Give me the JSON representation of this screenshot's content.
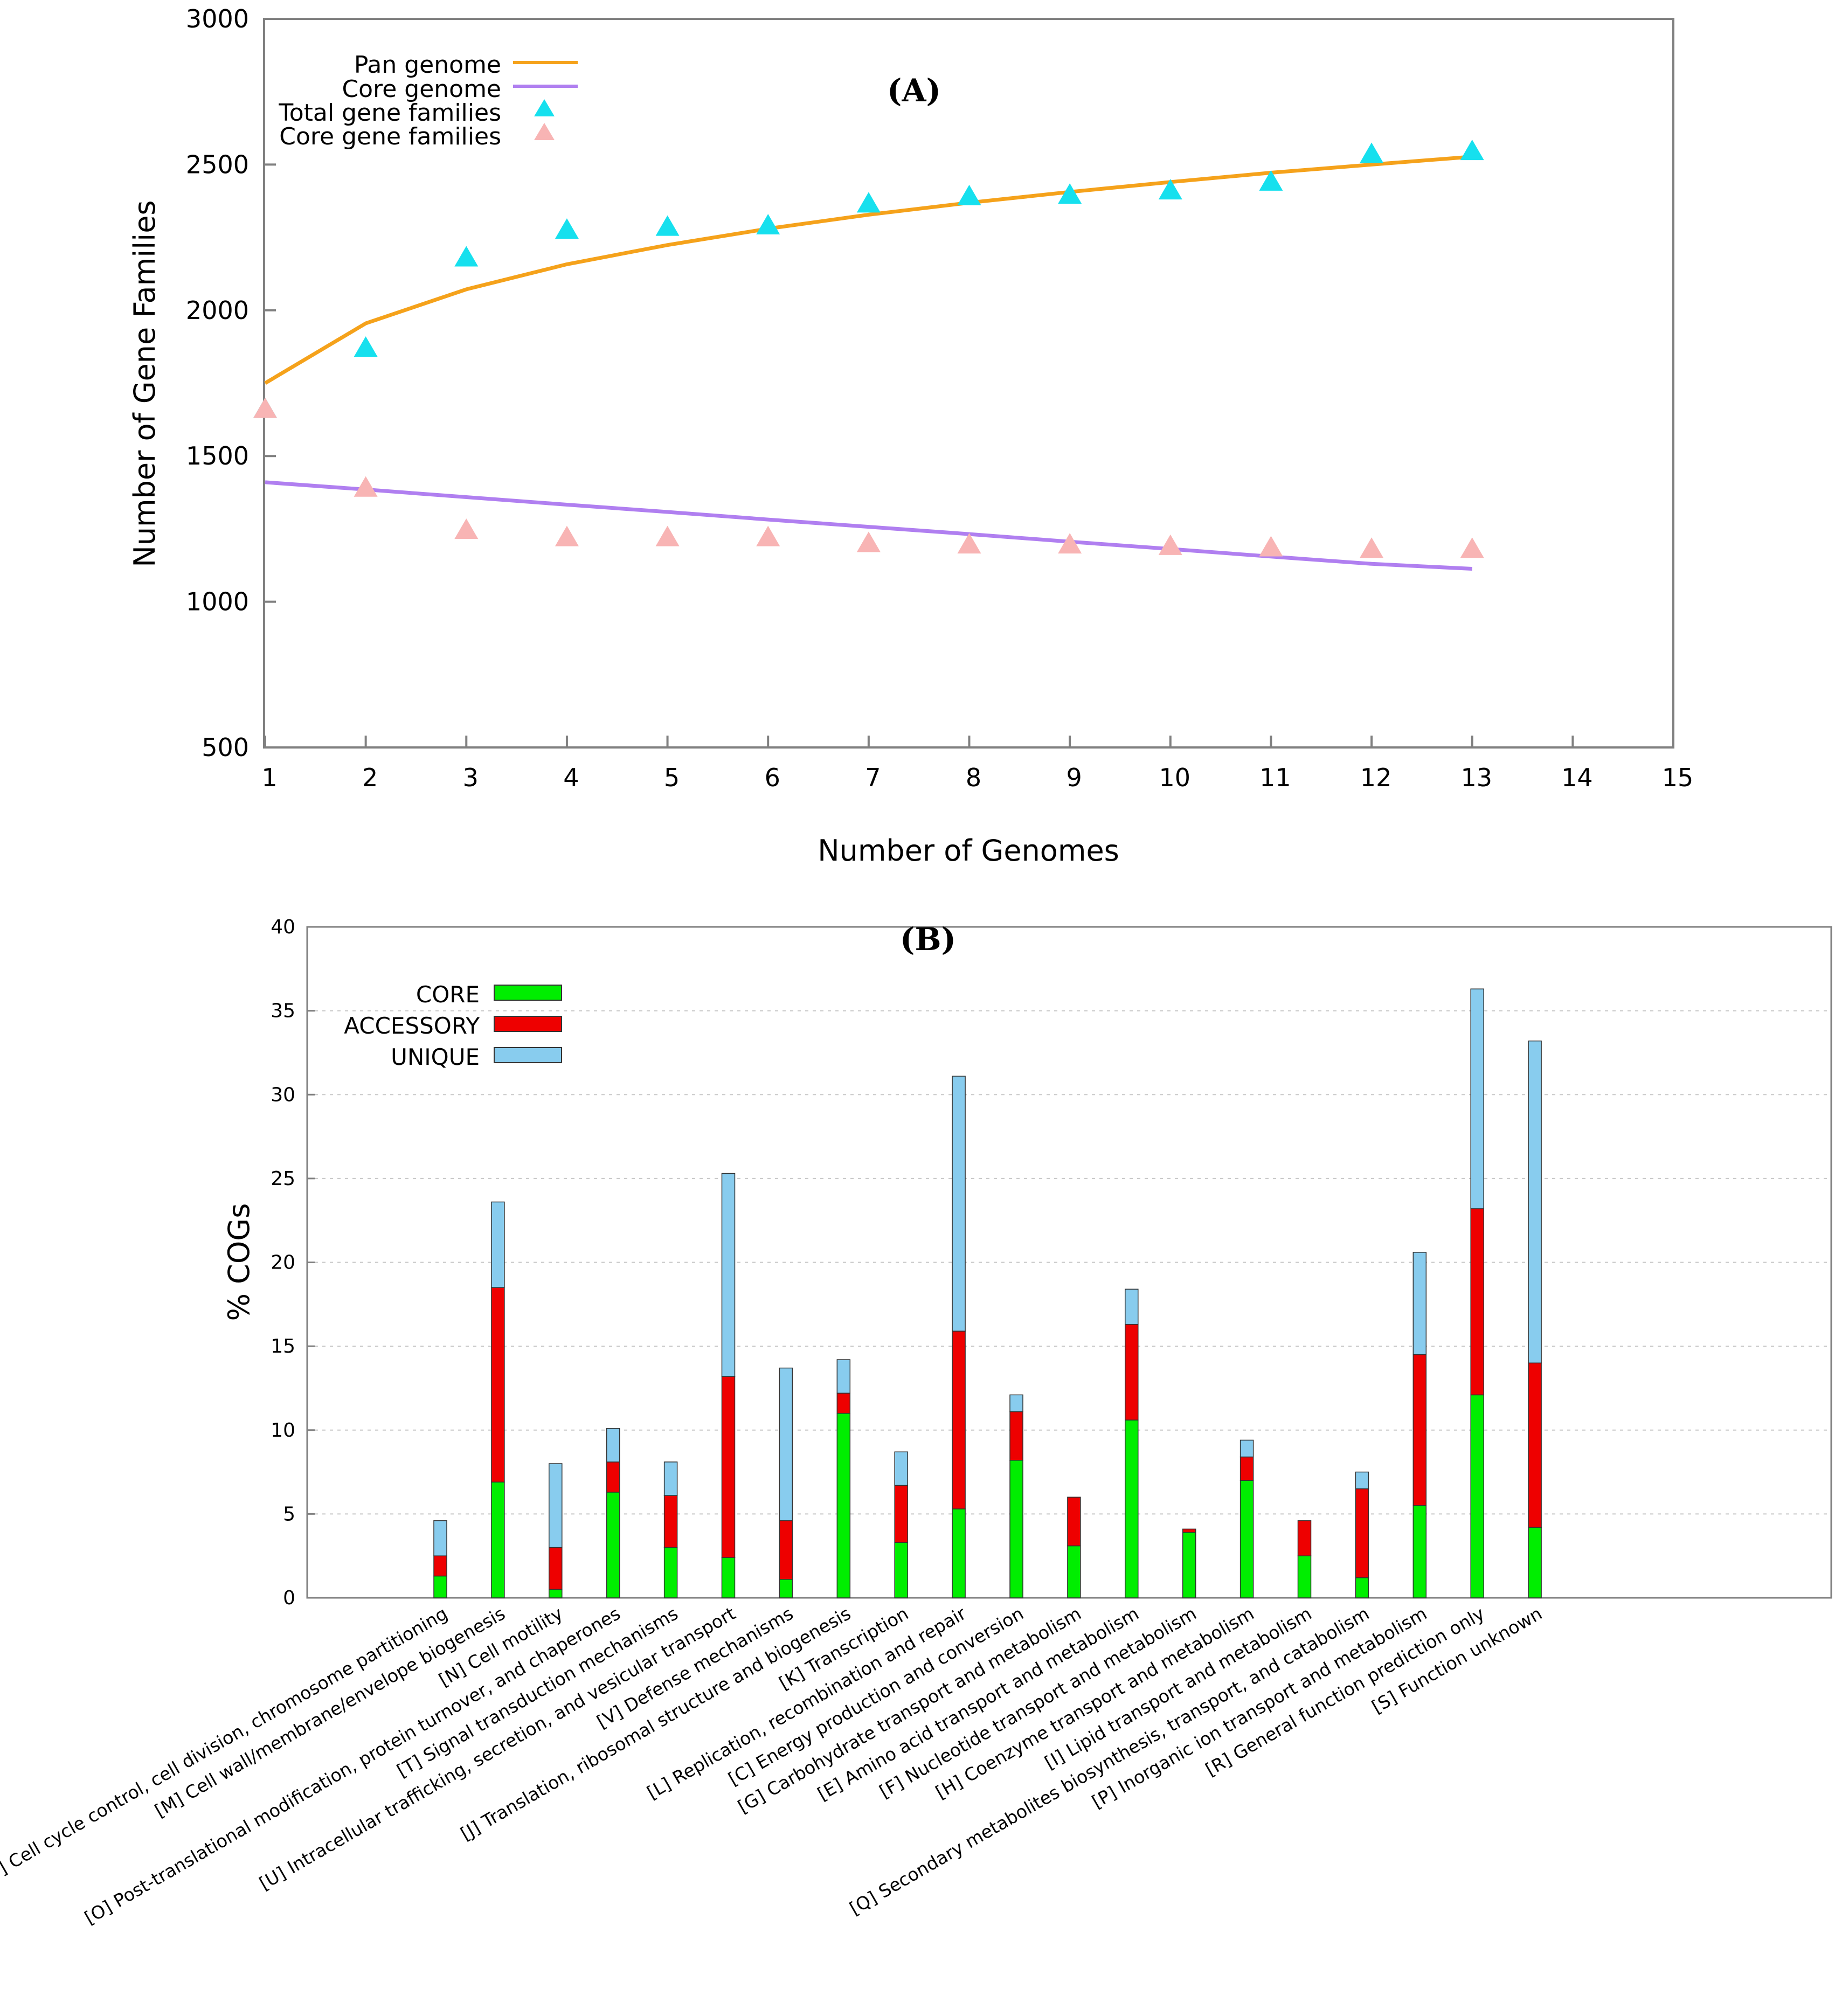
{
  "chart_data": [
    {
      "type": "line",
      "panel_label": "(A)",
      "xlabel": "Number of Genomes",
      "ylabel": "Number of Gene Families",
      "xlim": [
        1,
        15
      ],
      "ylim": [
        500,
        3000
      ],
      "x_ticks": [
        "1",
        "2",
        "3",
        "4",
        "5",
        "6",
        "7",
        "8",
        "9",
        "10",
        "11",
        "12",
        "13",
        "14",
        "15"
      ],
      "y_ticks": [
        "500",
        "1000",
        "1500",
        "2000",
        "2500",
        "3000"
      ],
      "legend": [
        "Pan genome",
        "Core genome",
        "Total gene families",
        "Core gene families"
      ],
      "x": [
        1,
        2,
        3,
        4,
        5,
        6,
        7,
        8,
        9,
        10,
        11,
        12,
        13
      ],
      "series": [
        {
          "name": "Pan genome",
          "style": "line",
          "color": "#f5a21b",
          "values": [
            1750,
            1955,
            2072,
            2158,
            2224,
            2280,
            2328,
            2369,
            2406,
            2440,
            2472,
            2500,
            2527
          ],
          "values_note": "fitted curve"
        },
        {
          "name": "Core genome",
          "style": "line",
          "color": "#b07ff0",
          "values": [
            1410,
            1385,
            1359,
            1333,
            1308,
            1282,
            1257,
            1232,
            1206,
            1181,
            1155,
            1130,
            1113
          ],
          "values_note": "fitted line"
        },
        {
          "name": "Total gene families",
          "style": "triangle",
          "color": "#16e0ee",
          "values": [
            1660,
            1870,
            2180,
            2275,
            2285,
            2290,
            2365,
            2390,
            2395,
            2410,
            2440,
            2535,
            2545
          ]
        },
        {
          "name": "Core gene families",
          "style": "triangle",
          "color": "#f8b4b4",
          "values": [
            1660,
            1390,
            1245,
            1220,
            1220,
            1220,
            1200,
            1195,
            1195,
            1190,
            1185,
            1180,
            1180
          ]
        }
      ]
    },
    {
      "type": "bar",
      "stacked": true,
      "panel_label": "(B)",
      "ylabel": "% COGs",
      "ylim": [
        0,
        40
      ],
      "y_ticks": [
        "0",
        "5",
        "10",
        "15",
        "20",
        "25",
        "30",
        "35",
        "40"
      ],
      "legend": [
        "CORE",
        "ACCESSORY",
        "UNIQUE"
      ],
      "categories": [
        "[D] Cell cycle control, cell division, chromosome partitioning",
        "[M] Cell wall/membrane/envelope biogenesis",
        "[N] Cell motility",
        "[O] Post-translational modification, protein turnover, and chaperones",
        "[T] Signal transduction mechanisms",
        "[U] Intracellular trafficking, secretion, and vesicular transport",
        "[V] Defense mechanisms",
        "[J] Translation, ribosomal structure and biogenesis",
        "[K] Transcription",
        "[L] Replication, recombination and repair",
        "[C] Energy production and conversion",
        "[G] Carbohydrate transport and metabolism",
        "[E] Amino acid transport and metabolism",
        "[F] Nucleotide transport and metabolism",
        "[H] Coenzyme transport and metabolism",
        "[I] Lipid transport and metabolism",
        "[Q] Secondary metabolites biosynthesis, transport, and catabolism",
        "[P] Inorganic ion transport and metabolism",
        "[R] General function prediction only",
        "[S] Function unknown"
      ],
      "series": [
        {
          "name": "CORE",
          "color": "#00ee00",
          "values": [
            1.3,
            6.9,
            0.5,
            6.3,
            3.0,
            2.4,
            1.1,
            11.0,
            3.3,
            5.3,
            8.2,
            3.1,
            10.6,
            3.9,
            7.0,
            2.5,
            1.2,
            5.5,
            12.1,
            4.2
          ]
        },
        {
          "name": "ACCESSORY",
          "color": "#ee0000",
          "values": [
            1.2,
            11.6,
            2.5,
            1.8,
            3.1,
            10.8,
            3.5,
            1.2,
            3.4,
            10.6,
            2.9,
            2.9,
            5.7,
            0.2,
            1.4,
            2.1,
            5.3,
            9.0,
            11.1,
            9.8
          ]
        },
        {
          "name": "UNIQUE",
          "color": "#88ccee",
          "values": [
            2.1,
            5.1,
            5.0,
            2.0,
            2.0,
            12.1,
            9.1,
            2.0,
            2.0,
            15.2,
            1.0,
            0.0,
            2.1,
            0.0,
            1.0,
            0.0,
            1.0,
            6.1,
            13.1,
            19.2
          ]
        }
      ]
    }
  ]
}
